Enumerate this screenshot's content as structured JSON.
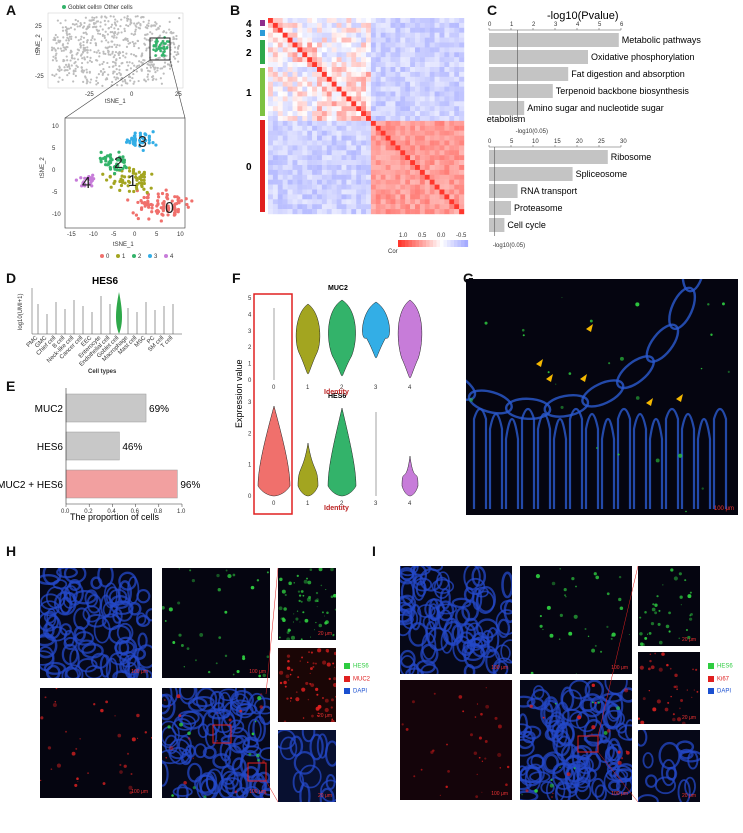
{
  "panels": {
    "a": "A",
    "b": "B",
    "c": "C",
    "d": "D",
    "e": "E",
    "f": "F",
    "g": "G",
    "h": "H",
    "i": "I"
  },
  "panel_a": {
    "legend_goblet": "Goblet cells",
    "legend_other": "Other cells",
    "top_ylabel": "tSNE_2",
    "top_xlabel": "tSNE_1",
    "top_xticks": [
      "-25",
      "0",
      "25"
    ],
    "top_yticks": [
      "25",
      "0",
      "-25"
    ],
    "bot_ylabel": "tSNE_2",
    "bot_xlabel": "tSNE_1",
    "bot_xticks": [
      "-15",
      "-10",
      "-5",
      "0",
      "5",
      "10"
    ],
    "bot_yticks": [
      "10",
      "5",
      "0",
      "-5",
      "-10"
    ],
    "clusters": [
      "0",
      "1",
      "2",
      "3",
      "4"
    ],
    "cluster_colors": [
      "#f0706c",
      "#a3a520",
      "#33b36a",
      "#33aee6",
      "#c77cd9"
    ]
  },
  "panel_b": {
    "cluster_labels": [
      "4",
      "3",
      "2",
      "1",
      "0"
    ],
    "cluster_colors": [
      "#8e2d8c",
      "#2b9bd8",
      "#2ea84a",
      "#7dc242",
      "#e02020"
    ],
    "legend_title": "Cor",
    "legend_ticks": [
      "1.0",
      "0.5",
      "0.0",
      "-0.5"
    ]
  },
  "panel_c": {
    "title": "-log10(Pvalue)",
    "top_ticks": [
      "0",
      "1",
      "2",
      "3",
      "4",
      "5",
      "6"
    ],
    "top_ref": "-log10(0.05)",
    "top_bars": [
      {
        "label": "Metabolic pathways",
        "value": 5.9
      },
      {
        "label": "Oxidative phosphorylation",
        "value": 4.5
      },
      {
        "label": "Fat digestion and absorption",
        "value": 3.6
      },
      {
        "label": "Terpenoid backbone biosynthesis",
        "value": 2.9
      },
      {
        "label": "Amino sugar and nucleotide sugar metabolism",
        "value": 1.6
      }
    ],
    "bot_ticks": [
      "0",
      "5",
      "10",
      "15",
      "20",
      "25",
      "30"
    ],
    "bot_ref": "-log10(0.05)",
    "bot_bars": [
      {
        "label": "Ribosome",
        "value": 27
      },
      {
        "label": "Spliceosome",
        "value": 19
      },
      {
        "label": "RNA transport",
        "value": 6.5
      },
      {
        "label": "Proteasome",
        "value": 5
      },
      {
        "label": "Cell cycle",
        "value": 3.5
      }
    ]
  },
  "panel_d": {
    "title": "HES6",
    "ylabel": "log10(UMI+1)",
    "xlabel": "Cell types",
    "cell_types": [
      "PMC",
      "GMC",
      "Chief cell",
      "B cell",
      "Neck-like cell",
      "Cancer cell",
      "EEC",
      "Enterocyte",
      "Endothelial cell",
      "Goblet cell",
      "Macrophage",
      "Mast cell",
      "MSC",
      "PC",
      "SM cell",
      "T cell"
    ]
  },
  "panel_e": {
    "xlabel": "The proportion of cells",
    "xticks": [
      "0.0",
      "0.2",
      "0.4",
      "0.6",
      "0.8",
      "1.0"
    ],
    "bars": [
      {
        "label": "MUC2",
        "value": 0.69,
        "text": "69%",
        "color": "#c8c8c8"
      },
      {
        "label": "HES6",
        "value": 0.46,
        "text": "46%",
        "color": "#c8c8c8"
      },
      {
        "label": "MUC2 + HES6",
        "value": 0.96,
        "text": "96%",
        "color": "#f2a0a0"
      }
    ]
  },
  "panel_f": {
    "ylabel": "Expression value",
    "top_title": "MUC2",
    "bot_title": "HES6",
    "xlabel": "Identity",
    "top_yticks": [
      "5",
      "4",
      "3",
      "2",
      "1",
      "0"
    ],
    "bot_yticks": [
      "3",
      "2",
      "1",
      "0"
    ],
    "clusters": [
      "0",
      "1",
      "2",
      "3",
      "4"
    ]
  },
  "panel_g": {
    "scale": "100 μm"
  },
  "panel_h": {
    "legend": [
      "HES6",
      "MUC2",
      "DAPI"
    ],
    "legend_colors": [
      "#2ecc40",
      "#e02020",
      "#1a4fd0"
    ],
    "scale_big": "100 μm",
    "scale_small": "20 μm"
  },
  "panel_i": {
    "legend": [
      "HES6",
      "Ki67",
      "DAPI"
    ],
    "legend_colors": [
      "#2ecc40",
      "#e02020",
      "#1a4fd0"
    ],
    "scale_big": "100 μm",
    "scale_small": "20 μm"
  },
  "chart_data": [
    {
      "type": "bar",
      "title": "-log10(Pvalue)",
      "categories": [
        "Metabolic pathways",
        "Oxidative phosphorylation",
        "Fat digestion and absorption",
        "Terpenoid backbone biosynthesis",
        "Amino sugar and nucleotide sugar metabolism"
      ],
      "values": [
        5.9,
        4.5,
        3.6,
        2.9,
        1.6
      ],
      "xlim": [
        0,
        6
      ]
    },
    {
      "type": "bar",
      "categories": [
        "Ribosome",
        "Spliceosome",
        "RNA transport",
        "Proteasome",
        "Cell cycle"
      ],
      "values": [
        27,
        19,
        6.5,
        5,
        3.5
      ],
      "xlim": [
        0,
        30
      ]
    },
    {
      "type": "bar",
      "xlabel": "The proportion of cells",
      "categories": [
        "MUC2",
        "HES6",
        "MUC2 + HES6"
      ],
      "values": [
        0.69,
        0.46,
        0.96
      ],
      "xlim": [
        0,
        1.0
      ]
    }
  ]
}
